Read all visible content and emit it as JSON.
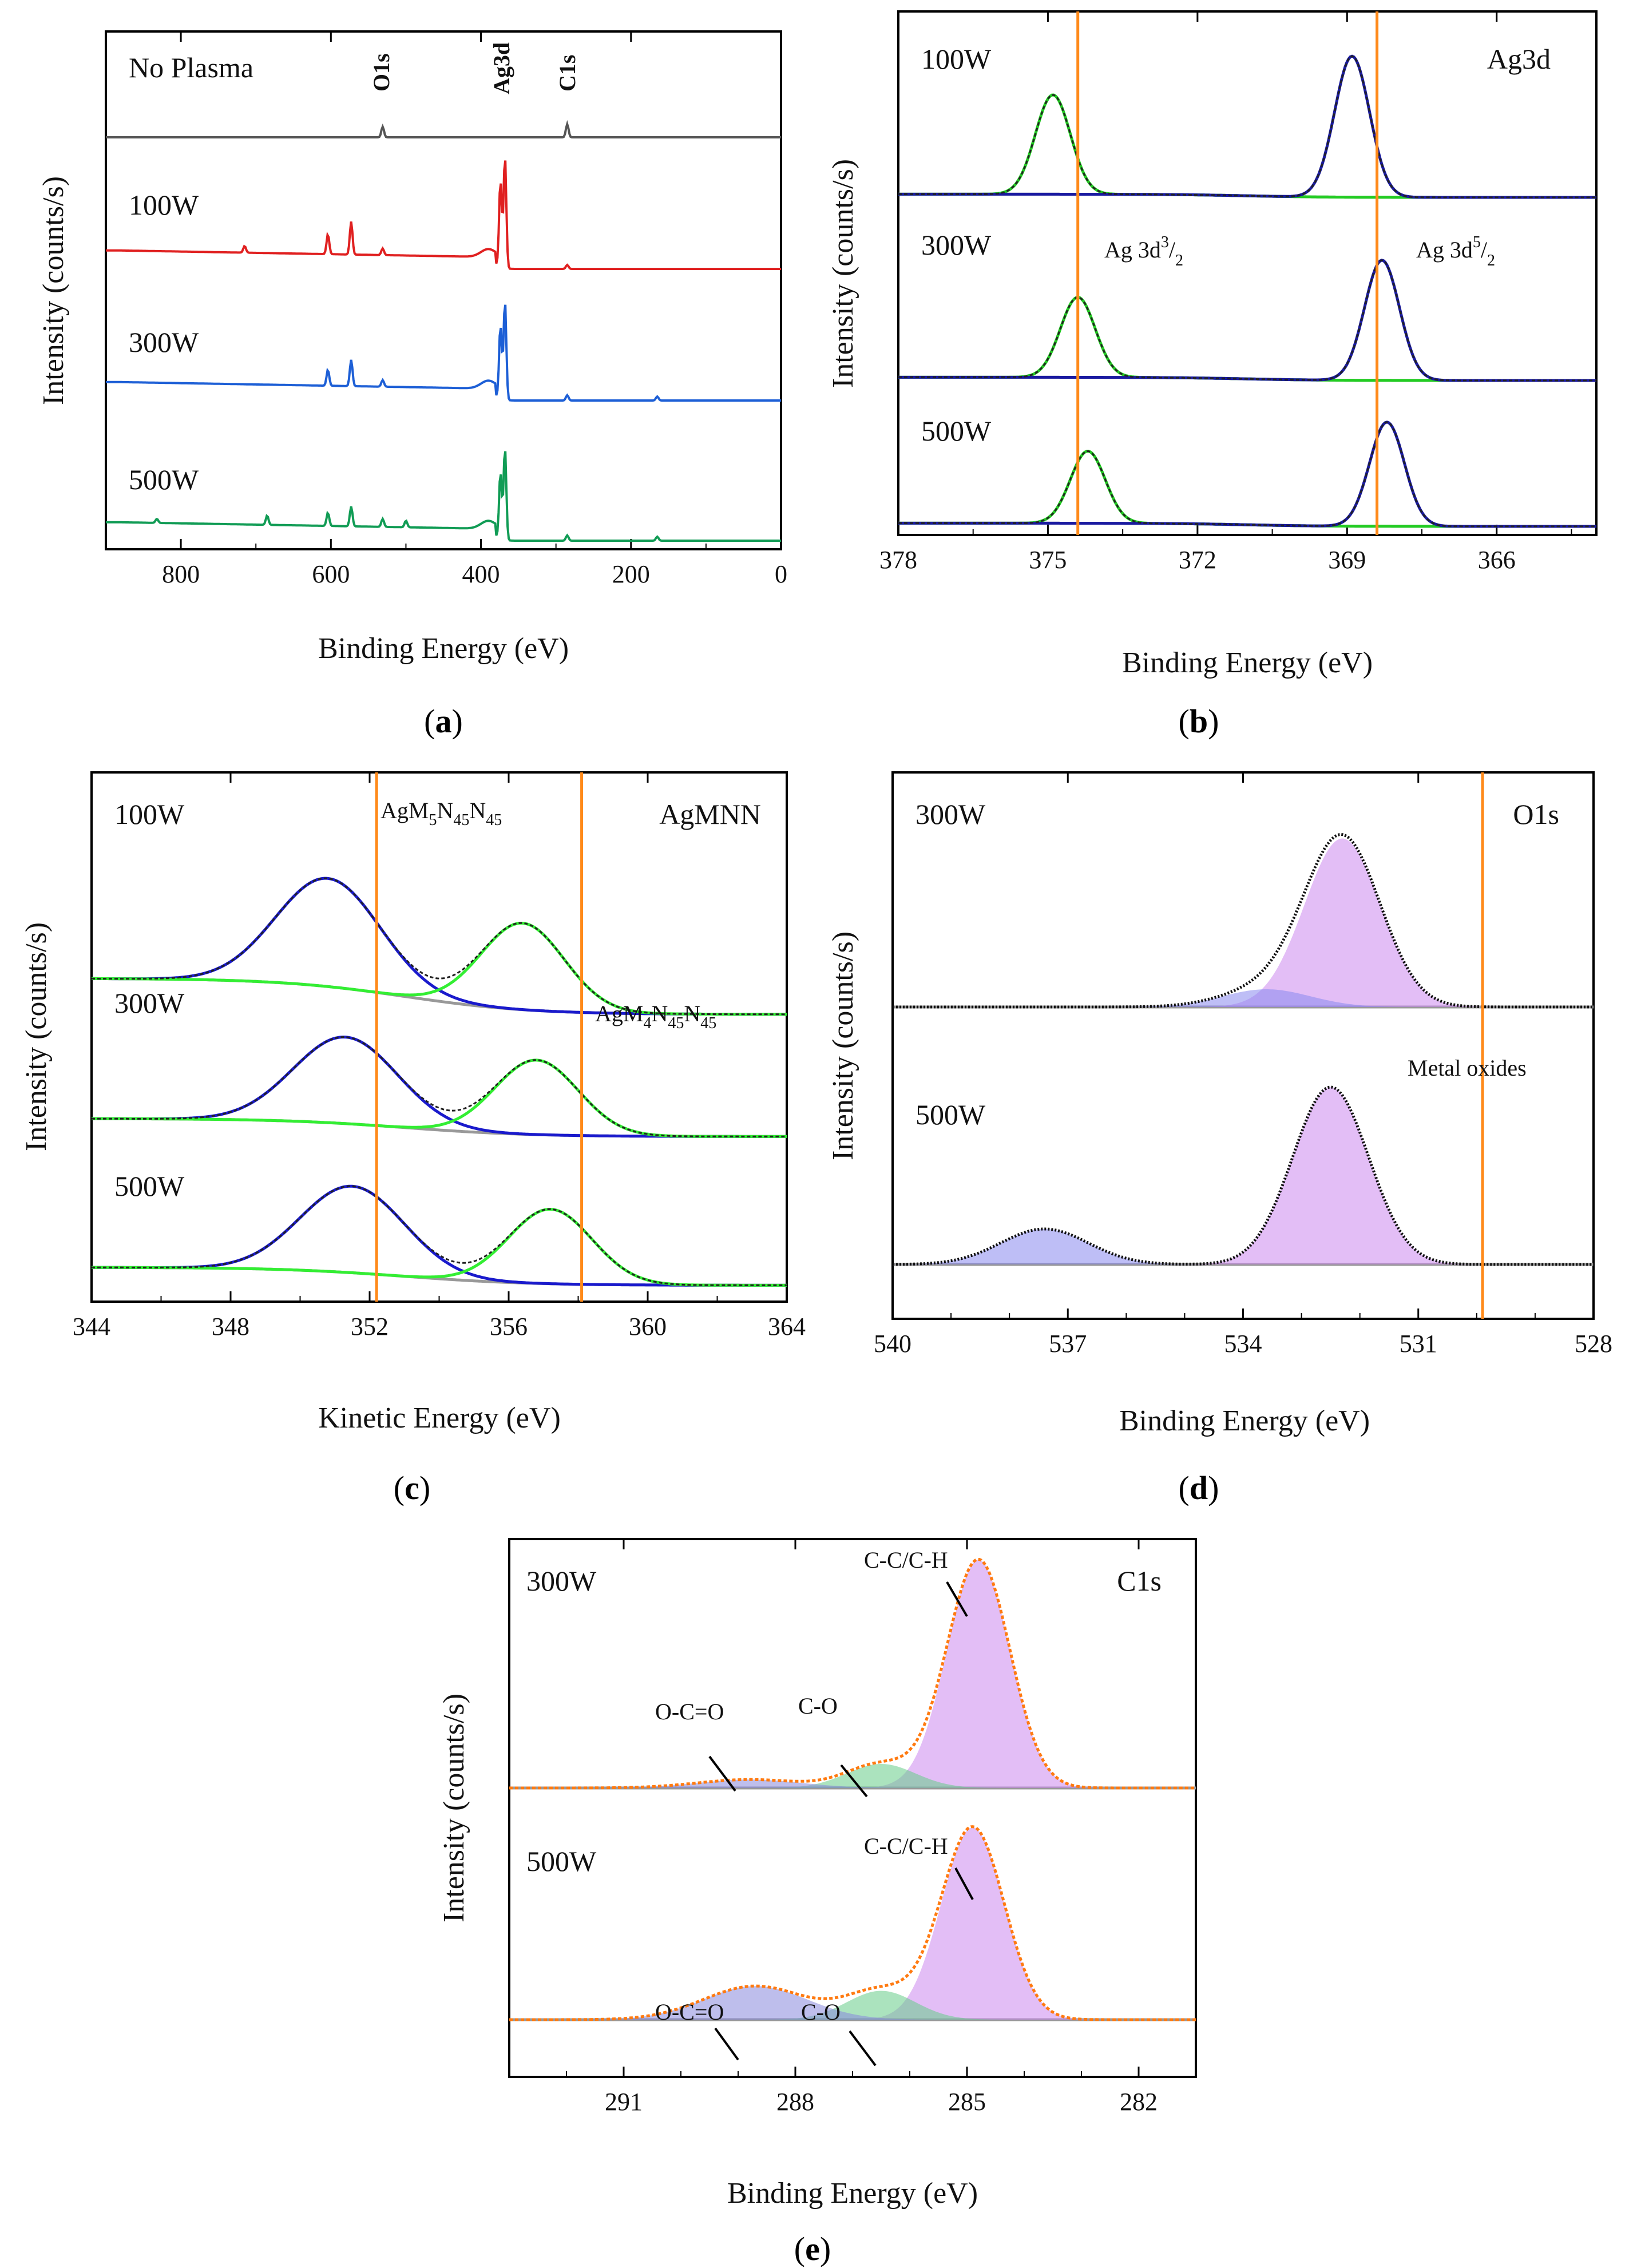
{
  "panels": {
    "a": {
      "label": "a",
      "chart_data": {
        "type": "line",
        "title": "",
        "xlabel": "Binding Energy (eV)",
        "ylabel": "Intensity (counts/s)",
        "xlim": [
          900,
          0
        ],
        "xticks": [
          "800",
          "600",
          "400",
          "200",
          "0"
        ],
        "peak_labels": [
          "O1s",
          "Ag3d",
          "C1s"
        ],
        "peak_positions": [
          531,
          370,
          285
        ],
        "series": [
          {
            "name": "No Plasma",
            "color": "#555555",
            "peaks": [
              [
                531,
                0.08
              ],
              [
                285,
                0.1
              ]
            ]
          },
          {
            "name": "100W",
            "color": "#e02020",
            "peaks": [
              [
                715,
                0.05
              ],
              [
                604,
                0.15
              ],
              [
                573,
                0.25
              ],
              [
                531,
                0.05
              ],
              [
                374,
                0.65
              ],
              [
                368,
                0.85
              ],
              [
                285,
                0.03
              ]
            ]
          },
          {
            "name": "300W",
            "color": "#1d5fd6",
            "peaks": [
              [
                604,
                0.12
              ],
              [
                573,
                0.2
              ],
              [
                531,
                0.05
              ],
              [
                374,
                0.55
              ],
              [
                368,
                0.75
              ],
              [
                285,
                0.04
              ],
              [
                165,
                0.03
              ]
            ]
          },
          {
            "name": "500W",
            "color": "#119c55",
            "peaks": [
              [
                832,
                0.03
              ],
              [
                685,
                0.07
              ],
              [
                604,
                0.1
              ],
              [
                573,
                0.15
              ],
              [
                531,
                0.06
              ],
              [
                500,
                0.05
              ],
              [
                374,
                0.5
              ],
              [
                368,
                0.7
              ],
              [
                285,
                0.04
              ],
              [
                165,
                0.03
              ]
            ]
          }
        ]
      }
    },
    "b": {
      "label": "b",
      "chart_data": {
        "type": "line",
        "title": "Ag3d",
        "xlabel": "Binding Energy (eV)",
        "ylabel": "Intensity (counts/s)",
        "xlim": [
          378,
          364
        ],
        "xticks": [
          "378",
          "375",
          "372",
          "369",
          "366"
        ],
        "reference_lines": [
          374.4,
          368.4
        ],
        "annotations": {
          "ag32": "Ag 3d",
          "ag32_sup": "3",
          "ag32_sub": "2",
          "ag52": "Ag 3d",
          "ag52_sup": "5",
          "ag52_sub": "2"
        },
        "series": [
          {
            "name": "100W",
            "peaks": [
              {
                "center": 374.9,
                "height": 0.62,
                "color": "#22cc22"
              },
              {
                "center": 368.9,
                "height": 0.88,
                "color": "#1a1aa0"
              }
            ]
          },
          {
            "name": "300W",
            "peaks": [
              {
                "center": 374.4,
                "height": 0.5,
                "color": "#22cc22"
              },
              {
                "center": 368.3,
                "height": 0.75,
                "color": "#1a1aa0"
              }
            ]
          },
          {
            "name": "500W",
            "peaks": [
              {
                "center": 374.2,
                "height": 0.45,
                "color": "#22cc22"
              },
              {
                "center": 368.2,
                "height": 0.65,
                "color": "#1a1aa0"
              }
            ]
          }
        ]
      }
    },
    "c": {
      "label": "c",
      "chart_data": {
        "type": "line",
        "title": "AgMNN",
        "xlabel": "Kinetic Energy (eV)",
        "ylabel": "Intensity (counts/s)",
        "xlim": [
          344,
          364
        ],
        "xticks": [
          "344",
          "348",
          "352",
          "356",
          "360",
          "364"
        ],
        "reference_lines": [
          352.2,
          358.1
        ],
        "annotations": {
          "m5": {
            "a": "AgM",
            "s1": "5",
            "b": "N",
            "s2": "45",
            "c": "N",
            "s3": "45"
          },
          "m4": {
            "a": "AgM",
            "s1": "4",
            "b": "N",
            "s2": "45",
            "c": "N",
            "s3": "45"
          }
        },
        "series": [
          {
            "name": "100W",
            "peaks": [
              {
                "center": 350.8,
                "height": 0.9,
                "color": "#1a1acc"
              },
              {
                "center": 356.4,
                "height": 0.72,
                "color": "#33ee33"
              }
            ]
          },
          {
            "name": "300W",
            "peaks": [
              {
                "center": 351.3,
                "height": 0.72,
                "color": "#1a1acc"
              },
              {
                "center": 356.8,
                "height": 0.62,
                "color": "#33ee33"
              }
            ]
          },
          {
            "name": "500W",
            "peaks": [
              {
                "center": 351.5,
                "height": 0.72,
                "color": "#1a1acc"
              },
              {
                "center": 357.2,
                "height": 0.62,
                "color": "#33ee33"
              }
            ]
          }
        ]
      }
    },
    "d": {
      "label": "d",
      "chart_data": {
        "type": "area",
        "title": "O1s",
        "xlabel": "Binding Energy (eV)",
        "ylabel": "Intensity (counts/s)",
        "xlim": [
          540,
          528
        ],
        "xticks": [
          "540",
          "537",
          "534",
          "531",
          "528"
        ],
        "reference_lines": [
          529.9
        ],
        "annotations": {
          "metal_oxides": "Metal oxides"
        },
        "series": [
          {
            "name": "300W",
            "peaks": [
              {
                "center": 532.3,
                "height": 0.95,
                "color": "#cc88ee"
              },
              {
                "center": 533.6,
                "height": 0.1,
                "color": "#8888ee"
              }
            ]
          },
          {
            "name": "500W",
            "peaks": [
              {
                "center": 532.5,
                "height": 1.0,
                "color": "#cc88ee"
              },
              {
                "center": 537.4,
                "height": 0.2,
                "color": "#8888ee"
              }
            ]
          }
        ]
      }
    },
    "e": {
      "label": "e",
      "chart_data": {
        "type": "area",
        "title": "C1s",
        "xlabel": "Binding Energy (eV)",
        "ylabel": "Intensity (counts/s)",
        "xlim": [
          293,
          281
        ],
        "xticks": [
          "291",
          "288",
          "285",
          "282"
        ],
        "annotations": {
          "cc": "C-C/C-H",
          "co": "C-O",
          "oco": "O-C=O"
        },
        "series": [
          {
            "name": "300W",
            "peaks": [
              {
                "center": 284.8,
                "height": 0.95,
                "color": "#cc88ee",
                "label": "C-C/C-H"
              },
              {
                "center": 286.5,
                "height": 0.1,
                "color": "#66cc88",
                "label": "C-O"
              },
              {
                "center": 288.8,
                "height": 0.035,
                "color": "#8888dd",
                "label": "O-C=O"
              }
            ]
          },
          {
            "name": "500W",
            "peaks": [
              {
                "center": 284.9,
                "height": 0.8,
                "color": "#cc88ee",
                "label": "C-C/C-H"
              },
              {
                "center": 286.5,
                "height": 0.12,
                "color": "#66cc88",
                "label": "C-O"
              },
              {
                "center": 288.7,
                "height": 0.14,
                "color": "#8888dd",
                "label": "O-C=O"
              }
            ]
          }
        ]
      }
    }
  }
}
